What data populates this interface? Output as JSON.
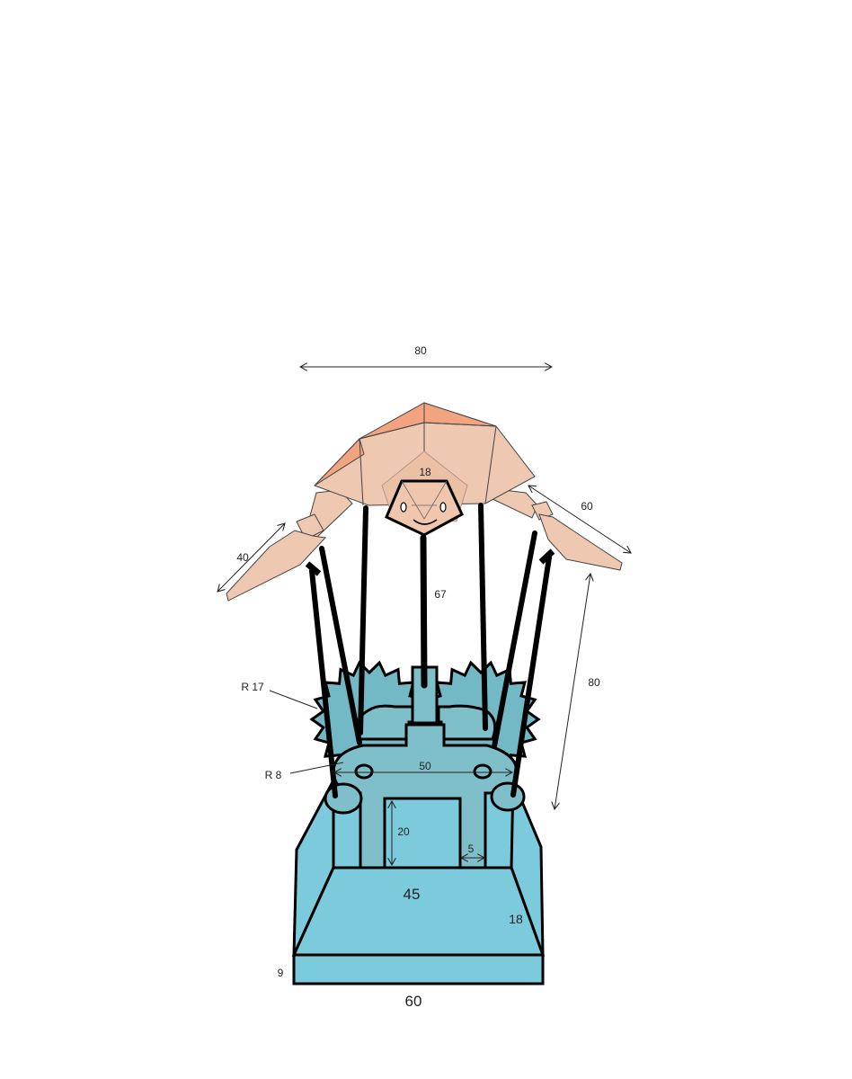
{
  "colors": {
    "base_fill": "#7ccbdc",
    "mechanism_fill": "#7ebfca",
    "gear_fill": "#73b9c5",
    "outline": "#000000",
    "turtle_shell_light": "#efc8b1",
    "turtle_shell_dark": "#f1a47f",
    "turtle_head": "#f0c6ad"
  },
  "dimensions": {
    "shell_width": "80",
    "head_size": "18",
    "front_flipper": "60",
    "back_flipper": "40",
    "center_rod": "67",
    "side_height": "80",
    "gear_radius": "R 17",
    "pin_radius": "R 8",
    "cam_width": "50",
    "slot_height": "20",
    "slot_gap": "5",
    "top_width": "45",
    "slope_length": "18",
    "plinth_height": "9",
    "base_width": "60"
  },
  "icons": [
    "turtle-head-icon",
    "gear-icon",
    "pin-hole-icon"
  ]
}
